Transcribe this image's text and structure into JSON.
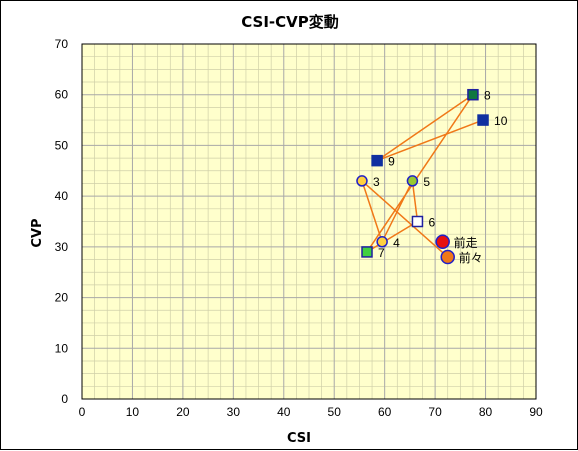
{
  "chart_data": {
    "type": "scatter",
    "title": "CSI-CVP変動",
    "xlabel": "CSI",
    "ylabel": "CVP",
    "xlim": [
      0,
      90
    ],
    "ylim": [
      0,
      70
    ],
    "x_ticks": [
      "0",
      "10",
      "20",
      "30",
      "40",
      "50",
      "60",
      "70",
      "80",
      "90"
    ],
    "y_ticks": [
      "0",
      "10",
      "20",
      "30",
      "40",
      "50",
      "60",
      "70"
    ],
    "grid": true,
    "plot_background": "#ffffcc",
    "major_grid_color": "#a8a8a8",
    "minor_grid_color": "#cfcfa8",
    "line_color": "#f07818",
    "points": [
      {
        "label": "前々",
        "x": 72.5,
        "y": 28,
        "shape": "circle-large",
        "fill": "#f07818",
        "stroke": "#2020c8"
      },
      {
        "label": "前走",
        "x": 71.5,
        "y": 31,
        "shape": "circle-large",
        "fill": "#e81010",
        "stroke": "#2020c8"
      },
      {
        "label": "3",
        "x": 55.5,
        "y": 43,
        "shape": "circle",
        "fill": "#ffd040",
        "stroke": "#2020c8"
      },
      {
        "label": "4",
        "x": 59.5,
        "y": 31,
        "shape": "circle",
        "fill": "#ffd040",
        "stroke": "#2020c8"
      },
      {
        "label": "5",
        "x": 65.5,
        "y": 43,
        "shape": "circle",
        "fill": "#98c830",
        "stroke": "#2020c8"
      },
      {
        "label": "6",
        "x": 66.5,
        "y": 35,
        "shape": "square",
        "fill": "#ffffff",
        "stroke": "#2020a0"
      },
      {
        "label": "7",
        "x": 56.5,
        "y": 29,
        "shape": "square",
        "fill": "#40d040",
        "stroke": "#2020a0"
      },
      {
        "label": "8",
        "x": 77.5,
        "y": 60,
        "shape": "square",
        "fill": "#107840",
        "stroke": "#2020a0"
      },
      {
        "label": "9",
        "x": 58.5,
        "y": 47,
        "shape": "square",
        "fill": "#1030a0",
        "stroke": "#1030a0"
      },
      {
        "label": "10",
        "x": 79.5,
        "y": 55,
        "shape": "square",
        "fill": "#1030a0",
        "stroke": "#1030a0"
      }
    ],
    "path_order": [
      "前々",
      "3",
      "4",
      "5",
      "6",
      "7",
      "8",
      "9",
      "10"
    ]
  }
}
